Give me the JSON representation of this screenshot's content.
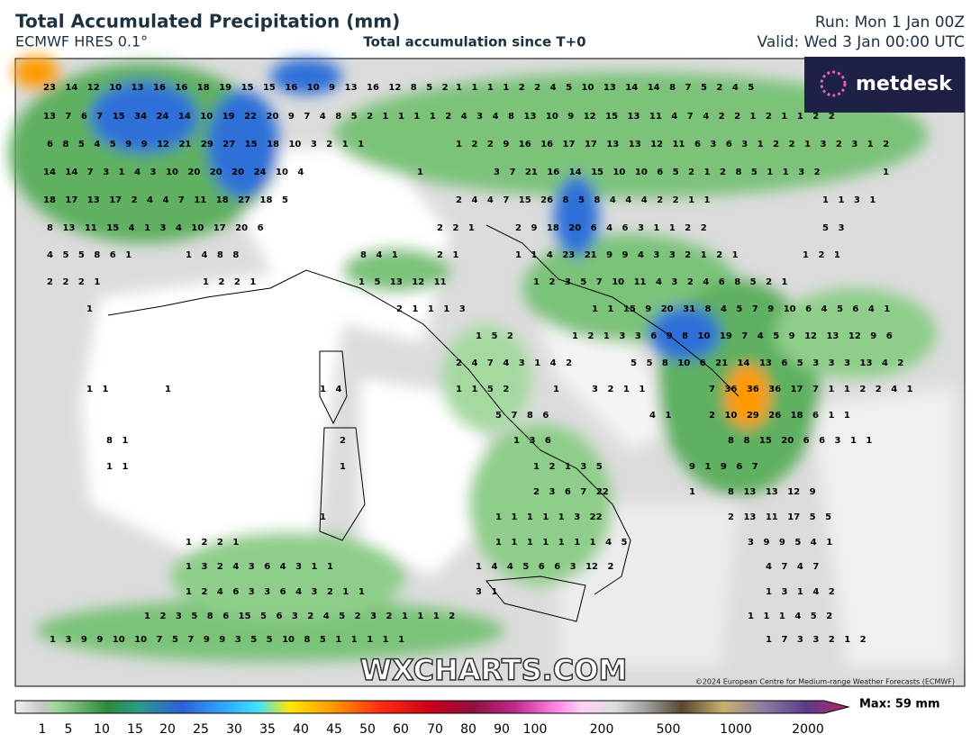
{
  "header": {
    "title": "Total Accumulated Precipitation (mm)",
    "model": "ECMWF HRES 0.1°",
    "subtitle": "Total accumulation since T+0",
    "run": "Run: Mon 1 Jan 00Z",
    "valid": "Valid: Wed 3 Jan 00:00 UTC"
  },
  "logo": "metdesk",
  "watermark": "WXCHARTS.COM",
  "copyright": "©2024 European Centre for Medium-range Weather Forecasts (ECMWF)",
  "map": {
    "labels": [
      "23 14 12 10 13 16 16 18 19 15 15 16 10 9 13 16 12 8 5 2",
      "1 1 1 1 2 2 4 5 10 13 14 14 8 7 5 2 4 5",
      "13 7 6 7 15 34 24 14 10 19 22 20 9 7 4 8 5 2 1 1 1 1 2 4 3 4 8 13 10 9 12 15 13 11 4 7 4 2 2 1 2 1 1 2 2",
      "6 8 5 4 5 9 9 12 21 29 27 15 18 10 3 2 1 1",
      "1 2 2 9 16 16 17 17 13 13 12 11 6 3 6 3 1 2 2 1 3 2 3 1 2",
      "14 14 7 3 1 4 3 10 20 20 20 24 10 4",
      "1",
      "3 7 21 16 14 15 10 10 6 5 2 1 2 8 5 1 1 3 2",
      "1",
      "18 17 13 17 2 4 4 7 11 18 27 18 5",
      "2 4 4 7 15 26 8 5 8 4 4 4 2 2 1 1",
      "1 1 3 1",
      "8 13 11 15 4 1 3 4 10 17 20 6",
      "2 2 1",
      "2 9 18 20 6 4 6 3 1 1 2 2",
      "5 3",
      "4 5 5 8 6 1",
      "1 4 8 8",
      "8 4 1",
      "2 1",
      "1 1 4 23 21 9 9 4 3 3 2 1 2 1",
      "1 2 1",
      "2 2 2 1",
      "1 2 2 1",
      "1 5 13 12 11",
      "1 2 3 5 7 10 11 4 3 2 4 6 8 5 2 1",
      "1",
      "2 1 1 1 3",
      "1 1 15 9 20 31 8 4 5 7 9 10 6 4 5 6 4 1",
      "1 5 2",
      "1 2 1 3 3 6 9 8 10 19 7 4 5 9 12 13 12 9 6",
      "2 4 7 4 3 1 4 2",
      "5 5 8 10 6 21 14 13 6 5 3 3 3 13 4 2",
      "1 1",
      "1",
      "1 4",
      "1 1 5 2",
      "1",
      "3 2 1 1",
      "7 36 36 36 17 7 1 1 2 2 4 1",
      "5 7 8 6",
      "4 1",
      "2 10 29 26 18 6 1 1",
      "8 1",
      "2",
      "1 3 6",
      "8 8 15 20 6 6 3 1 1",
      "1 1",
      "1",
      "1 2 1 3 5",
      "9 1 9 6 7",
      "2 3 6 7 22",
      "1",
      "8 13 13 12 9",
      "1",
      "1 1 1 1 1 3 22",
      "2 13 11 17 5 5",
      "1 2 2 1",
      "1 1 1 1 1 1 1 4 5",
      "3 9 9 5 4 1",
      "1 3 2 4 3 6 4 3 1 1",
      "1 4 4 5 6 6 3 12 2",
      "4 7 4 7",
      "1 2 4 6 3 3 6 4 3 2 1 1",
      "3 1",
      "1 3 1 4 2",
      "1 2 3 5 8 6 15 5 6 3 2 4 5 2 3 2 1 1 1 2",
      "1 1 1 4 5 2",
      "1 3 9 9 10 10 7 5 7 9 9 3 5 5 10 8 5 1 1 1 1 1",
      "1 7 3 3 2 1 2"
    ]
  },
  "legend": {
    "ticks": [
      "1",
      "5",
      "10",
      "15",
      "20",
      "25",
      "30",
      "35",
      "40",
      "45",
      "50",
      "60",
      "70",
      "80",
      "90",
      "100",
      "200",
      "500",
      "1000",
      "2000"
    ],
    "max": "Max: 59 mm"
  }
}
